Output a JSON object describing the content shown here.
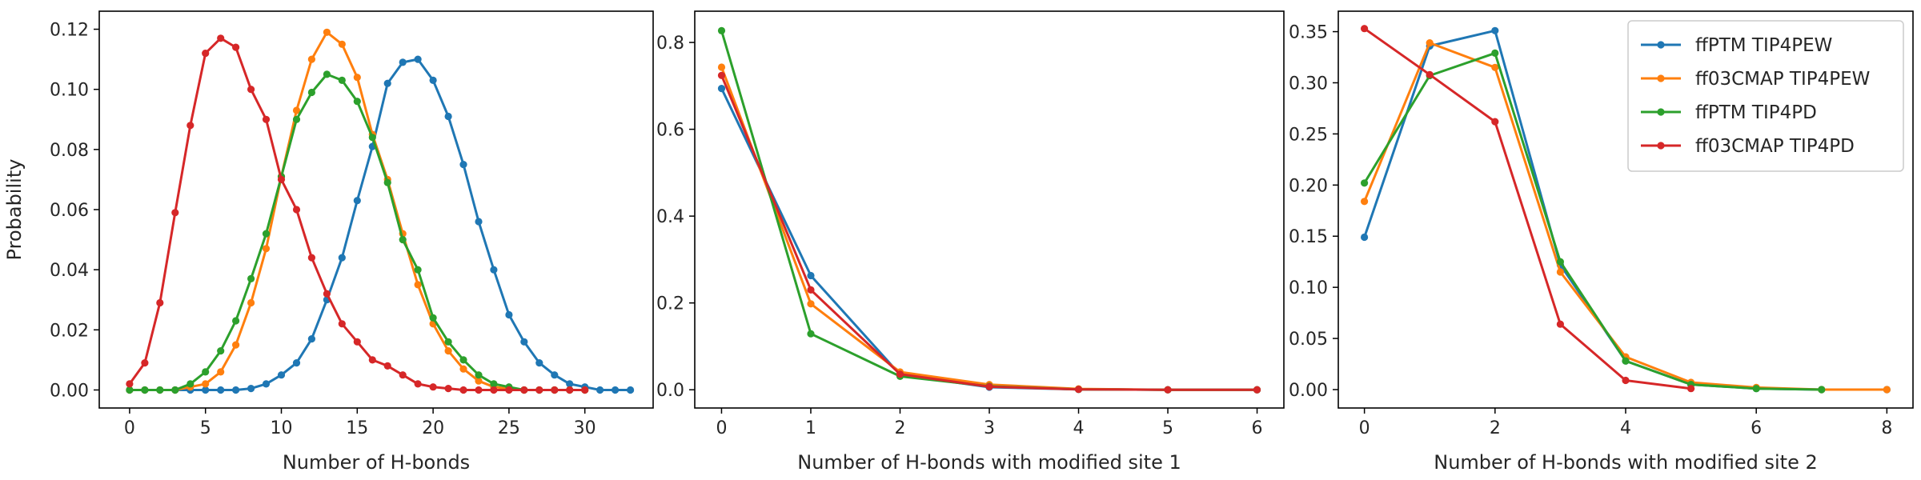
{
  "chart_data": [
    {
      "type": "line",
      "xlabel": "Number of H-bonds",
      "ylabel": "Probability",
      "xlim": [
        -2,
        34.5
      ],
      "ylim": [
        -0.006,
        0.126
      ],
      "xticks": [
        0,
        5,
        10,
        15,
        20,
        25,
        30
      ],
      "yticks": [
        0.0,
        0.02,
        0.04,
        0.06,
        0.08,
        0.1,
        0.12
      ],
      "ytick_labels": [
        "0.00",
        "0.02",
        "0.04",
        "0.06",
        "0.08",
        "0.10",
        "0.12"
      ],
      "series": [
        {
          "color": "#1f77b4",
          "x": [
            0,
            1,
            2,
            3,
            4,
            5,
            6,
            7,
            8,
            9,
            10,
            11,
            12,
            13,
            14,
            15,
            16,
            17,
            18,
            19,
            20,
            21,
            22,
            23,
            24,
            25,
            26,
            27,
            28,
            29,
            30,
            31,
            32,
            33
          ],
          "y": [
            0,
            0,
            0,
            0,
            0,
            0,
            0,
            0,
            0.0005,
            0.002,
            0.005,
            0.009,
            0.017,
            0.03,
            0.044,
            0.063,
            0.081,
            0.102,
            0.109,
            0.11,
            0.103,
            0.091,
            0.075,
            0.056,
            0.04,
            0.025,
            0.016,
            0.009,
            0.005,
            0.002,
            0.001,
            0,
            0,
            0
          ]
        },
        {
          "color": "#ff7f0e",
          "x": [
            0,
            1,
            2,
            3,
            4,
            5,
            6,
            7,
            8,
            9,
            10,
            11,
            12,
            13,
            14,
            15,
            16,
            17,
            18,
            19,
            20,
            21,
            22,
            23,
            24,
            25,
            26,
            27,
            28,
            29,
            30
          ],
          "y": [
            0,
            0,
            0,
            0,
            0.001,
            0.002,
            0.006,
            0.015,
            0.029,
            0.047,
            0.071,
            0.093,
            0.11,
            0.119,
            0.115,
            0.104,
            0.085,
            0.07,
            0.052,
            0.035,
            0.022,
            0.013,
            0.007,
            0.003,
            0.001,
            0.0005,
            0,
            0,
            0,
            0,
            0
          ]
        },
        {
          "color": "#2ca02c",
          "x": [
            0,
            1,
            2,
            3,
            4,
            5,
            6,
            7,
            8,
            9,
            10,
            11,
            12,
            13,
            14,
            15,
            16,
            17,
            18,
            19,
            20,
            21,
            22,
            23,
            24,
            25,
            26,
            27,
            28,
            29,
            30
          ],
          "y": [
            0,
            0,
            0,
            0,
            0.002,
            0.006,
            0.013,
            0.023,
            0.037,
            0.052,
            0.071,
            0.09,
            0.099,
            0.105,
            0.103,
            0.096,
            0.084,
            0.069,
            0.05,
            0.04,
            0.024,
            0.016,
            0.01,
            0.005,
            0.002,
            0.001,
            0,
            0,
            0,
            0,
            0
          ]
        },
        {
          "color": "#d62728",
          "x": [
            0,
            1,
            2,
            3,
            4,
            5,
            6,
            7,
            8,
            9,
            10,
            11,
            12,
            13,
            14,
            15,
            16,
            17,
            18,
            19,
            20,
            21,
            22,
            23,
            24,
            25,
            26,
            27,
            28,
            29,
            30
          ],
          "y": [
            0.002,
            0.009,
            0.029,
            0.059,
            0.088,
            0.112,
            0.117,
            0.114,
            0.1,
            0.09,
            0.07,
            0.06,
            0.044,
            0.032,
            0.022,
            0.016,
            0.01,
            0.008,
            0.005,
            0.002,
            0.001,
            0.0005,
            0,
            0,
            0,
            0,
            0,
            0,
            0,
            0,
            0
          ]
        }
      ]
    },
    {
      "type": "line",
      "xlabel": "Number of H-bonds with modified site 1",
      "ylabel": "",
      "xlim": [
        -0.3,
        6.3
      ],
      "ylim": [
        -0.042,
        0.872
      ],
      "xticks": [
        0,
        1,
        2,
        3,
        4,
        5,
        6
      ],
      "yticks": [
        0.0,
        0.2,
        0.4,
        0.6,
        0.8
      ],
      "ytick_labels": [
        "0.0",
        "0.2",
        "0.4",
        "0.6",
        "0.8"
      ],
      "series": [
        {
          "color": "#1f77b4",
          "x": [
            0,
            1,
            2,
            3,
            4,
            5,
            6
          ],
          "y": [
            0.694,
            0.263,
            0.035,
            0.006,
            0.001,
            0,
            0
          ]
        },
        {
          "color": "#ff7f0e",
          "x": [
            0,
            1,
            2,
            3,
            4,
            5,
            6
          ],
          "y": [
            0.743,
            0.198,
            0.041,
            0.012,
            0.002,
            0,
            0
          ]
        },
        {
          "color": "#2ca02c",
          "x": [
            0,
            1,
            2,
            3,
            4,
            5,
            6
          ],
          "y": [
            0.827,
            0.129,
            0.031,
            0.008,
            0.001,
            0,
            0
          ]
        },
        {
          "color": "#d62728",
          "x": [
            0,
            1,
            2,
            3,
            4,
            5,
            6
          ],
          "y": [
            0.724,
            0.23,
            0.036,
            0.007,
            0.001,
            0,
            0
          ]
        }
      ]
    },
    {
      "type": "line",
      "xlabel": "Number of H-bonds with modified site 2",
      "ylabel": "",
      "xlim": [
        -0.4,
        8.4
      ],
      "ylim": [
        -0.018,
        0.37
      ],
      "xticks": [
        0,
        2,
        4,
        6,
        8
      ],
      "yticks": [
        0.0,
        0.05,
        0.1,
        0.15,
        0.2,
        0.25,
        0.3,
        0.35
      ],
      "ytick_labels": [
        "0.00",
        "0.05",
        "0.10",
        "0.15",
        "0.20",
        "0.25",
        "0.30",
        "0.35"
      ],
      "series": [
        {
          "color": "#1f77b4",
          "x": [
            0,
            1,
            2,
            3,
            4,
            5,
            6,
            7,
            8
          ],
          "y": [
            0.149,
            0.336,
            0.351,
            0.122,
            0.028,
            0.005,
            0.001,
            0,
            0
          ]
        },
        {
          "color": "#ff7f0e",
          "x": [
            0,
            1,
            2,
            3,
            4,
            5,
            6,
            7,
            8
          ],
          "y": [
            0.184,
            0.339,
            0.315,
            0.115,
            0.032,
            0.007,
            0.002,
            0,
            0
          ]
        },
        {
          "color": "#2ca02c",
          "x": [
            0,
            1,
            2,
            3,
            4,
            5,
            6,
            7
          ],
          "y": [
            0.202,
            0.307,
            0.329,
            0.125,
            0.028,
            0.005,
            0.001,
            0
          ]
        },
        {
          "color": "#d62728",
          "x": [
            0,
            1,
            2,
            3,
            4,
            5
          ],
          "y": [
            0.353,
            0.308,
            0.262,
            0.064,
            0.009,
            0.001
          ]
        }
      ],
      "legend": {
        "placement": "top-right",
        "entries": [
          "ffPTM TIP4PEW",
          "ff03CMAP TIP4PEW",
          "ffPTM TIP4PD",
          "ff03CMAP TIP4PD"
        ],
        "colors": [
          "#1f77b4",
          "#ff7f0e",
          "#2ca02c",
          "#d62728"
        ]
      }
    }
  ]
}
